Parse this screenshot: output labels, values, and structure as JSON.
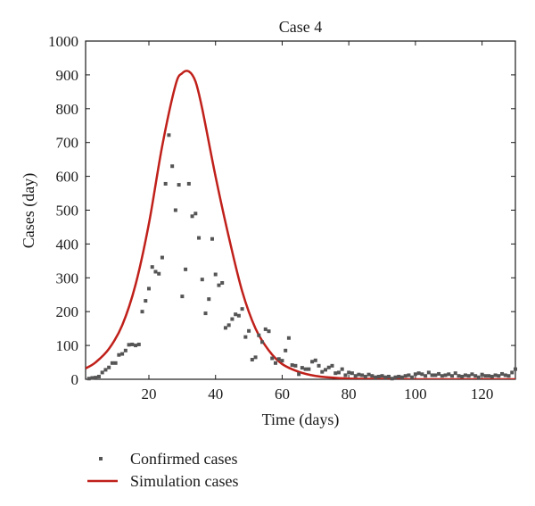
{
  "chart_data": {
    "type": "scatter",
    "title": "Case 4",
    "xlabel": "Time (days)",
    "ylabel": "Cases (day)",
    "xlim": [
      1,
      130
    ],
    "ylim": [
      0,
      1000
    ],
    "x_ticks": [
      20,
      40,
      60,
      80,
      100,
      120
    ],
    "y_ticks": [
      0,
      100,
      200,
      300,
      400,
      500,
      600,
      700,
      800,
      900,
      1000
    ],
    "grid": false,
    "legend_position": "bottom-left",
    "series": [
      {
        "name": "Confirmed cases",
        "kind": "scatter",
        "color": "#555555",
        "points": [
          [
            2,
            2
          ],
          [
            3,
            4
          ],
          [
            4,
            5
          ],
          [
            5,
            8
          ],
          [
            6,
            20
          ],
          [
            7,
            28
          ],
          [
            8,
            35
          ],
          [
            9,
            48
          ],
          [
            10,
            48
          ],
          [
            11,
            72
          ],
          [
            12,
            75
          ],
          [
            13,
            85
          ],
          [
            14,
            102
          ],
          [
            15,
            103
          ],
          [
            16,
            100
          ],
          [
            17,
            103
          ],
          [
            18,
            200
          ],
          [
            19,
            232
          ],
          [
            20,
            268
          ],
          [
            21,
            332
          ],
          [
            22,
            318
          ],
          [
            23,
            312
          ],
          [
            24,
            360
          ],
          [
            25,
            578
          ],
          [
            26,
            722
          ],
          [
            27,
            630
          ],
          [
            28,
            500
          ],
          [
            29,
            575
          ],
          [
            30,
            245
          ],
          [
            31,
            325
          ],
          [
            32,
            578
          ],
          [
            33,
            482
          ],
          [
            34,
            490
          ],
          [
            35,
            418
          ],
          [
            36,
            295
          ],
          [
            37,
            195
          ],
          [
            38,
            237
          ],
          [
            39,
            415
          ],
          [
            40,
            310
          ],
          [
            41,
            278
          ],
          [
            42,
            285
          ],
          [
            43,
            152
          ],
          [
            44,
            160
          ],
          [
            45,
            178
          ],
          [
            46,
            192
          ],
          [
            47,
            188
          ],
          [
            48,
            208
          ],
          [
            49,
            125
          ],
          [
            50,
            143
          ],
          [
            51,
            58
          ],
          [
            52,
            65
          ],
          [
            53,
            130
          ],
          [
            54,
            110
          ],
          [
            55,
            148
          ],
          [
            56,
            142
          ],
          [
            57,
            62
          ],
          [
            58,
            48
          ],
          [
            59,
            60
          ],
          [
            60,
            55
          ],
          [
            61,
            85
          ],
          [
            62,
            122
          ],
          [
            63,
            42
          ],
          [
            64,
            40
          ],
          [
            65,
            15
          ],
          [
            66,
            34
          ],
          [
            67,
            30
          ],
          [
            68,
            30
          ],
          [
            69,
            52
          ],
          [
            70,
            56
          ],
          [
            71,
            40
          ],
          [
            72,
            22
          ],
          [
            73,
            28
          ],
          [
            74,
            35
          ],
          [
            75,
            40
          ],
          [
            76,
            18
          ],
          [
            77,
            20
          ],
          [
            78,
            30
          ],
          [
            79,
            12
          ],
          [
            80,
            20
          ],
          [
            81,
            18
          ],
          [
            82,
            10
          ],
          [
            83,
            14
          ],
          [
            84,
            12
          ],
          [
            85,
            8
          ],
          [
            86,
            14
          ],
          [
            87,
            10
          ],
          [
            88,
            6
          ],
          [
            89,
            8
          ],
          [
            90,
            10
          ],
          [
            91,
            6
          ],
          [
            92,
            8
          ],
          [
            93,
            2
          ],
          [
            94,
            6
          ],
          [
            95,
            8
          ],
          [
            96,
            6
          ],
          [
            97,
            10
          ],
          [
            98,
            12
          ],
          [
            99,
            6
          ],
          [
            100,
            15
          ],
          [
            101,
            18
          ],
          [
            102,
            15
          ],
          [
            103,
            10
          ],
          [
            104,
            20
          ],
          [
            105,
            12
          ],
          [
            106,
            12
          ],
          [
            107,
            16
          ],
          [
            108,
            10
          ],
          [
            109,
            12
          ],
          [
            110,
            15
          ],
          [
            111,
            10
          ],
          [
            112,
            18
          ],
          [
            113,
            10
          ],
          [
            114,
            8
          ],
          [
            115,
            12
          ],
          [
            116,
            10
          ],
          [
            117,
            15
          ],
          [
            118,
            10
          ],
          [
            119,
            6
          ],
          [
            120,
            14
          ],
          [
            121,
            10
          ],
          [
            122,
            10
          ],
          [
            123,
            8
          ],
          [
            124,
            12
          ],
          [
            125,
            10
          ],
          [
            126,
            16
          ],
          [
            127,
            12
          ],
          [
            128,
            10
          ],
          [
            129,
            20
          ],
          [
            130,
            30
          ]
        ]
      },
      {
        "name": "Simulation cases",
        "kind": "line",
        "color": "#c0201a",
        "points": [
          [
            1,
            32
          ],
          [
            4,
            50
          ],
          [
            8,
            90
          ],
          [
            12,
            160
          ],
          [
            16,
            280
          ],
          [
            20,
            460
          ],
          [
            24,
            690
          ],
          [
            28,
            870
          ],
          [
            30,
            905
          ],
          [
            32,
            910
          ],
          [
            34,
            880
          ],
          [
            36,
            800
          ],
          [
            40,
            600
          ],
          [
            44,
            420
          ],
          [
            48,
            260
          ],
          [
            52,
            150
          ],
          [
            56,
            85
          ],
          [
            60,
            45
          ],
          [
            65,
            22
          ],
          [
            70,
            10
          ],
          [
            75,
            5
          ],
          [
            80,
            2
          ],
          [
            90,
            1
          ],
          [
            100,
            0
          ],
          [
            110,
            0
          ],
          [
            120,
            0
          ],
          [
            130,
            0
          ]
        ]
      }
    ]
  }
}
